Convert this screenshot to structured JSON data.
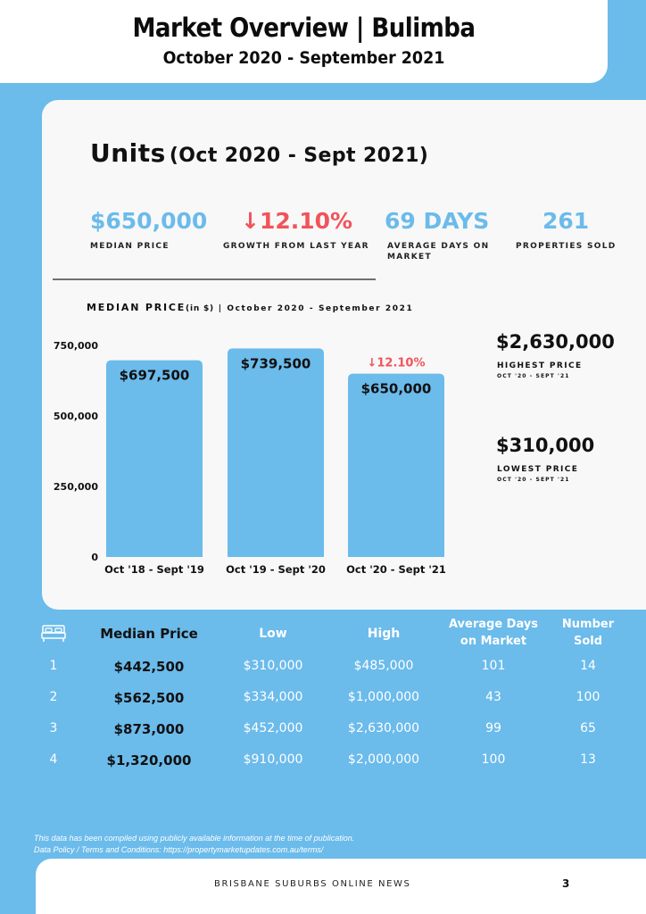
{
  "header": {
    "title": "Market Overview | Bulimba",
    "subtitle": "October 2020 - September 2021"
  },
  "section": {
    "title": "Units",
    "title_period": "(Oct 2020 - Sept 2021)"
  },
  "stats": [
    {
      "value": "$650,000",
      "label": "MEDIAN PRICE"
    },
    {
      "value": "↓12.10%",
      "label": "GROWTH FROM LAST YEAR"
    },
    {
      "value": "69 DAYS",
      "label": "AVERAGE DAYS ON MARKET"
    },
    {
      "value": "261",
      "label": "PROPERTIES SOLD"
    }
  ],
  "chart_caption": {
    "main": "MEDIAN PRICE",
    "unit": "(in $)",
    "period": " | October 2020 - September 2021"
  },
  "side": {
    "highest_value": "$2,630,000",
    "highest_label": "HIGHEST PRICE",
    "highest_period": "OCT '20 - SEPT '21",
    "lowest_value": "$310,000",
    "lowest_label": "LOWEST PRICE",
    "lowest_period": "OCT '20 - SEPT '21"
  },
  "chart_data": {
    "type": "bar",
    "categories": [
      "Oct '18 - Sept '19",
      "Oct '19 - Sept '20",
      "Oct '20 - Sept '21"
    ],
    "values": [
      697500,
      739500,
      650000
    ],
    "data_labels": [
      "$697,500",
      "$739,500",
      "$650,000"
    ],
    "annotation": {
      "category": "Oct '20 - Sept '21",
      "text": "↓12.10%"
    },
    "y_ticks": [
      0,
      250000,
      500000,
      750000
    ],
    "y_tick_labels": [
      "0",
      "250,000",
      "500,000",
      "750,000"
    ],
    "ylim": [
      0,
      750000
    ],
    "grid": false,
    "colors": {
      "bar": "#6bbbeb",
      "annotation": "#f0545a"
    }
  },
  "table": {
    "headers": [
      "Median Price",
      "Low",
      "High",
      "Average Days\non Market",
      "Number\nSold"
    ],
    "rows": [
      {
        "bedrooms": "1",
        "median": "$442,500",
        "low": "$310,000",
        "high": "$485,000",
        "days": "101",
        "sold": "14"
      },
      {
        "bedrooms": "2",
        "median": "$562,500",
        "low": "$334,000",
        "high": "$1,000,000",
        "days": "43",
        "sold": "100"
      },
      {
        "bedrooms": "3",
        "median": "$873,000",
        "low": "$452,000",
        "high": "$2,630,000",
        "days": "99",
        "sold": "65"
      },
      {
        "bedrooms": "4",
        "median": "$1,320,000",
        "low": "$910,000",
        "high": "$2,000,000",
        "days": "100",
        "sold": "13"
      }
    ],
    "icon": "bed-icon"
  },
  "footer": {
    "note_line1": "This data has been compiled using publicly available information at the time of publication.",
    "note_line2": "Data Policy / Terms and Conditions: https://propertymarketupdates.com.au/terms/",
    "brand": "BRISBANE SUBURBS ONLINE NEWS",
    "page": "3"
  },
  "colors": {
    "accent": "#6bbbeb",
    "negative": "#f0545a",
    "panel": "#f8f8f8"
  }
}
